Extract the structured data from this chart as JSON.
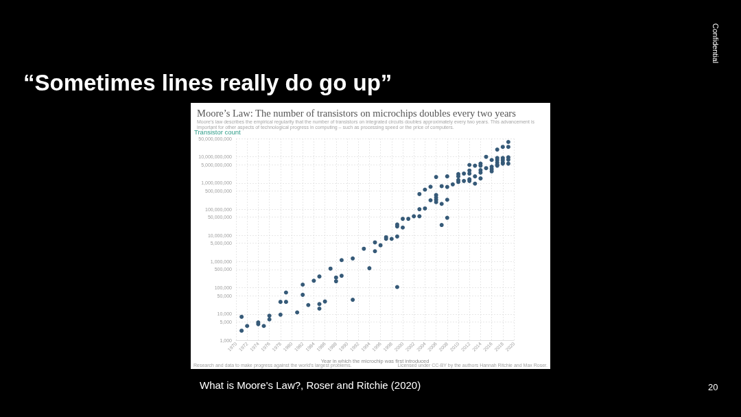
{
  "chart_data": {
    "type": "scatter",
    "title": "Moore’s Law: The number of transistors on microchips doubles every two years",
    "subtitle": "Moore’s law describes the empirical regularity that the number of transistors on integrated circuits doubles approximately every two years. This advancement is important for other aspects of technological progress in computing – such as processing speed or the price of computers.",
    "ylabel": "Transistor count",
    "xlabel": "Year in which the microchip was first introduced",
    "annotations": [
      "“Sometimes lines really do go up”",
      "What is Moore's Law?, Roser and Ritchie (2020)",
      "Confidential",
      "20",
      "Research and data to make progress against the world’s largest problems.",
      "Licensed under CC-BY by the authors Hannah Ritchie and Max Roser."
    ],
    "x": [
      1971,
      1971,
      1972,
      1974,
      1974,
      1975,
      1976,
      1976,
      1978,
      1978,
      1979,
      1979,
      1981,
      1982,
      1982,
      1983,
      1984,
      1985,
      1985,
      1985,
      1986,
      1987,
      1988,
      1988,
      1989,
      1989,
      1991,
      1991,
      1993,
      1994,
      1995,
      1995,
      1996,
      1997,
      1997,
      1998,
      1999,
      1999,
      1999,
      1999,
      2000,
      2000,
      2001,
      2002,
      2003,
      2003,
      2003,
      2004,
      2004,
      2005,
      2005,
      2006,
      2006,
      2006,
      2006,
      2006,
      2007,
      2007,
      2007,
      2008,
      2008,
      2008,
      2008,
      2009,
      2010,
      2010,
      2010,
      2010,
      2011,
      2011,
      2012,
      2012,
      2012,
      2012,
      2012,
      2013,
      2013,
      2013,
      2014,
      2014,
      2014,
      2014,
      2014,
      2015,
      2015,
      2016,
      2016,
      2016,
      2016,
      2017,
      2017,
      2017,
      2017,
      2017,
      2017,
      2018,
      2018,
      2018,
      2018,
      2018,
      2019,
      2019,
      2019,
      2019,
      2019
    ],
    "values": [
      2300,
      7800,
      3500,
      4800,
      4100,
      3500,
      8600,
      6200,
      9400,
      29000,
      29000,
      66000,
      11500,
      132000,
      54000,
      22000,
      186000,
      270000,
      24000,
      16000,
      30000,
      540000,
      246000,
      178000,
      1140000,
      288000,
      1320000,
      35000,
      3100000,
      560000,
      5400000,
      2500000,
      4200000,
      8500000,
      7400000,
      7400000,
      9100000,
      22000000,
      26000000,
      107000,
      20000000,
      43000000,
      43000000,
      54000000,
      54000000,
      100000000,
      380000000,
      107000000,
      560000000,
      220000000,
      720000000,
      186000000,
      230000000,
      280000000,
      350000000,
      1700000000,
      160000000,
      25000000,
      760000000,
      230000000,
      47000000,
      710000000,
      1800000000,
      890000000,
      2200000000,
      1800000000,
      1300000000,
      1100000000,
      2300000000,
      1200000000,
      4900000000,
      3000000000,
      2300000000,
      1400000000,
      1200000000,
      4600000000,
      1800000000,
      950000000,
      5500000000,
      4600000000,
      3100000000,
      2500000000,
      1500000000,
      10000000000,
      3700000000,
      7600000000,
      4200000000,
      3400000000,
      2800000000,
      19000000000,
      9100000000,
      7600000000,
      6100000000,
      5000000000,
      4600000000,
      24000000000,
      9100000000,
      7600000000,
      6100000000,
      5500000000,
      37000000000,
      24000000000,
      9600000000,
      7800000000,
      5500000000
    ],
    "color": "#365a78",
    "marker": "circle",
    "log": "y",
    "grid": true,
    "xlim": [
      1970,
      2020
    ],
    "xticks": [
      1970,
      1972,
      1974,
      1976,
      1978,
      1980,
      1982,
      1984,
      1986,
      1988,
      1990,
      1992,
      1994,
      1996,
      1998,
      2000,
      2002,
      2004,
      2006,
      2008,
      2010,
      2012,
      2014,
      2016,
      2018,
      2020
    ],
    "ylim": [
      1000,
      50000000000
    ],
    "yticks": [
      {
        "value": 1000,
        "label": "1,000"
      },
      {
        "value": 5000,
        "label": "5,000"
      },
      {
        "value": 10000,
        "label": "10,000"
      },
      {
        "value": 50000,
        "label": "50,000"
      },
      {
        "value": 100000,
        "label": "100,000"
      },
      {
        "value": 500000,
        "label": "500,000"
      },
      {
        "value": 1000000,
        "label": "1,000,000"
      },
      {
        "value": 5000000,
        "label": "5,000,000"
      },
      {
        "value": 10000000,
        "label": "10,000,000"
      },
      {
        "value": 50000000,
        "label": "50,000,000"
      },
      {
        "value": 100000000,
        "label": "100,000,000"
      },
      {
        "value": 500000000,
        "label": "500,000,000"
      },
      {
        "value": 1000000000,
        "label": "1,000,000,000"
      },
      {
        "value": 5000000000,
        "label": "5,000,000,000"
      },
      {
        "value": 10000000000,
        "label": "10,000,000,000"
      },
      {
        "value": 50000000000,
        "label": "50,000,000,000"
      }
    ]
  }
}
